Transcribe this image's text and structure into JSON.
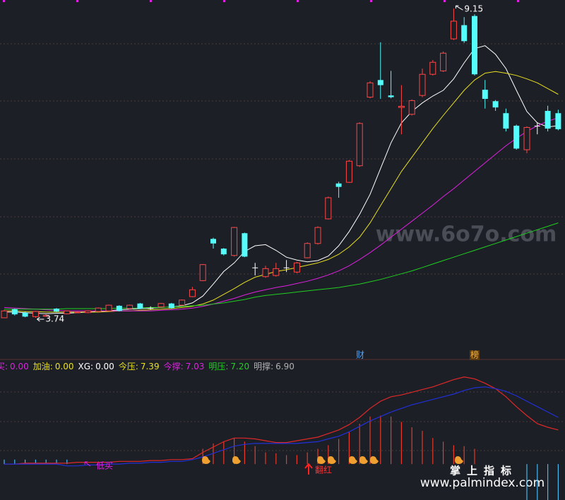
{
  "chart_data": [
    {
      "type": "candlestick",
      "ylim": [
        3.06,
        9.3
      ],
      "up_color": "#ff4646",
      "down_color": "#54fcfc",
      "flat_color": "#ffffff",
      "open": [
        3.74,
        3.89,
        3.83,
        3.76,
        3.77,
        3.9,
        3.81,
        3.83,
        3.83,
        3.85,
        3.86,
        3.95,
        3.9,
        3.99,
        3.91,
        3.93,
        3.99,
        3.96,
        4.11,
        4.39,
        5.12,
        4.95,
        4.83,
        5.22,
        4.62,
        4.46,
        4.48,
        4.62,
        4.54,
        4.79,
        5.04,
        5.47,
        6.09,
        6.11,
        6.4,
        7.6,
        7.9,
        7.63,
        7.42,
        7.3,
        7.63,
        8.0,
        8.06,
        8.62,
        8.86,
        9.02,
        7.73,
        7.53,
        7.32,
        7.1,
        6.68,
        7.1,
        7.36,
        7.32
      ],
      "high": [
        3.88,
        3.9,
        3.85,
        3.86,
        3.8,
        3.91,
        3.87,
        3.85,
        3.87,
        3.92,
        3.97,
        3.96,
        3.97,
        4.0,
        3.94,
        4.0,
        4.0,
        4.06,
        4.28,
        4.68,
        5.14,
        4.96,
        5.33,
        5.23,
        4.7,
        4.65,
        4.7,
        4.75,
        4.72,
        5.06,
        5.34,
        5.86,
        6.12,
        6.5,
        7.16,
        7.88,
        8.56,
        8.06,
        7.81,
        7.56,
        8.1,
        8.25,
        8.4,
        9.15,
        9.0,
        9.05,
        7.9,
        7.55,
        7.4,
        7.12,
        7.09,
        7.16,
        7.45,
        7.38
      ],
      "low": [
        3.75,
        3.78,
        3.75,
        3.74,
        3.76,
        3.84,
        3.8,
        3.82,
        3.82,
        3.84,
        3.85,
        3.85,
        3.89,
        3.89,
        3.88,
        3.92,
        3.9,
        3.95,
        4.1,
        4.38,
        4.95,
        4.83,
        4.81,
        4.8,
        4.48,
        4.44,
        4.46,
        4.54,
        4.52,
        4.78,
        5.02,
        5.46,
        5.84,
        6.1,
        6.38,
        7.58,
        7.57,
        7.58,
        6.95,
        7.28,
        7.6,
        7.98,
        8.04,
        8.6,
        8.55,
        7.98,
        7.4,
        7.36,
        7.0,
        6.68,
        6.62,
        6.95,
        7.0,
        7.02
      ],
      "close": [
        3.86,
        3.8,
        3.76,
        3.85,
        3.78,
        3.85,
        3.86,
        3.84,
        3.86,
        3.91,
        3.96,
        3.86,
        3.96,
        3.9,
        3.91,
        3.99,
        3.91,
        4.05,
        4.23,
        4.67,
        5.04,
        4.85,
        5.32,
        4.81,
        4.62,
        4.6,
        4.6,
        4.62,
        4.7,
        5.04,
        5.32,
        5.84,
        6.03,
        6.48,
        7.14,
        7.85,
        7.81,
        7.6,
        7.44,
        7.54,
        8.0,
        8.21,
        8.37,
        8.93,
        8.58,
        8.0,
        7.57,
        7.42,
        7.05,
        6.7,
        7.07,
        7.1,
        7.05,
        7.04
      ],
      "series": [
        {
          "color": "#ffffff",
          "values": [
            3.84,
            3.84,
            3.83,
            3.82,
            3.81,
            3.82,
            3.82,
            3.83,
            3.84,
            3.85,
            3.86,
            3.88,
            3.89,
            3.9,
            3.91,
            3.92,
            3.93,
            3.95,
            4.0,
            4.12,
            4.33,
            4.55,
            4.7,
            4.9,
            5.0,
            5.02,
            4.92,
            4.8,
            4.75,
            4.72,
            4.74,
            4.82,
            5.0,
            5.25,
            5.55,
            5.9,
            6.35,
            6.8,
            7.15,
            7.35,
            7.5,
            7.62,
            7.72,
            7.92,
            8.2,
            8.45,
            8.5,
            8.35,
            8.1,
            7.72,
            7.35,
            7.15,
            7.08,
            7.1
          ]
        },
        {
          "color": "#e8e020",
          "values": [
            3.86,
            3.86,
            3.85,
            3.85,
            3.84,
            3.84,
            3.84,
            3.84,
            3.84,
            3.84,
            3.85,
            3.86,
            3.86,
            3.87,
            3.88,
            3.89,
            3.9,
            3.92,
            3.94,
            3.98,
            4.05,
            4.15,
            4.25,
            4.36,
            4.45,
            4.5,
            4.55,
            4.58,
            4.62,
            4.66,
            4.7,
            4.76,
            4.85,
            4.98,
            5.15,
            5.4,
            5.7,
            6.0,
            6.3,
            6.55,
            6.8,
            7.05,
            7.28,
            7.5,
            7.72,
            7.9,
            8.02,
            8.05,
            8.02,
            7.98,
            7.92,
            7.85,
            7.75,
            7.65
          ]
        },
        {
          "color": "#e020e0",
          "values": [
            3.92,
            3.91,
            3.9,
            3.89,
            3.88,
            3.87,
            3.86,
            3.86,
            3.86,
            3.86,
            3.86,
            3.86,
            3.86,
            3.86,
            3.86,
            3.87,
            3.88,
            3.89,
            3.91,
            3.94,
            3.98,
            4.03,
            4.08,
            4.14,
            4.19,
            4.23,
            4.27,
            4.3,
            4.34,
            4.38,
            4.43,
            4.49,
            4.56,
            4.65,
            4.76,
            4.88,
            5.01,
            5.15,
            5.29,
            5.43,
            5.57,
            5.71,
            5.86,
            6.0,
            6.15,
            6.3,
            6.45,
            6.6,
            6.75,
            6.88,
            7.0,
            7.1,
            7.18,
            7.24
          ]
        },
        {
          "color": "#20d020",
          "values": [
            3.89,
            3.89,
            3.89,
            3.89,
            3.89,
            3.89,
            3.9,
            3.9,
            3.9,
            3.9,
            3.9,
            3.91,
            3.91,
            3.91,
            3.92,
            3.92,
            3.93,
            3.94,
            3.95,
            3.96,
            3.98,
            4.0,
            4.03,
            4.06,
            4.1,
            4.13,
            4.15,
            4.17,
            4.19,
            4.21,
            4.23,
            4.25,
            4.27,
            4.3,
            4.33,
            4.37,
            4.41,
            4.46,
            4.51,
            4.56,
            4.62,
            4.68,
            4.74,
            4.8,
            4.86,
            4.92,
            4.98,
            5.04,
            5.1,
            5.16,
            5.22,
            5.28,
            5.34,
            5.4
          ]
        }
      ],
      "max_marker": 9.15,
      "min_marker": 3.74,
      "events": [
        "财",
        "榜"
      ]
    },
    {
      "type": "indicator",
      "ylim": [
        -40,
        100
      ],
      "legend": [
        {
          "label": "买:",
          "value": "0.00",
          "color": "#e020e0"
        },
        {
          "label": "加油:",
          "value": "0.00",
          "color": "#e8e020"
        },
        {
          "label": "XG:",
          "value": "0.00",
          "color": "#ffffff"
        },
        {
          "label": "今压:",
          "value": "7.39",
          "color": "#e8e020"
        },
        {
          "label": "今撑:",
          "value": "7.03",
          "color": "#e020e0"
        },
        {
          "label": "明压:",
          "value": "7.20",
          "color": "#20d020"
        },
        {
          "label": "明撑:",
          "value": "6.90",
          "color": "#b0b0b0"
        }
      ],
      "series": [
        {
          "color": "#e02828",
          "values": [
            0,
            0,
            1,
            1,
            1,
            1,
            1,
            2,
            2,
            2,
            2,
            3,
            3,
            3,
            4,
            4,
            5,
            5,
            6,
            13,
            19,
            25,
            29,
            29,
            28,
            26,
            24,
            24,
            26,
            28,
            30,
            34,
            38,
            44,
            52,
            62,
            70,
            75,
            77,
            80,
            83,
            86,
            90,
            94,
            97,
            95,
            90,
            84,
            75,
            64,
            54,
            45,
            41,
            38
          ]
        },
        {
          "color": "#2030d8",
          "values": [
            0,
            0,
            0,
            0,
            0,
            0,
            -2,
            -2,
            -1,
            -1,
            0,
            0,
            1,
            1,
            2,
            2,
            3,
            3,
            5,
            8,
            12,
            16,
            20,
            22,
            23,
            23,
            23,
            23,
            23,
            24,
            25,
            28,
            31,
            36,
            42,
            48,
            53,
            58,
            62,
            66,
            69,
            72,
            75,
            78,
            82,
            85,
            86,
            84,
            81,
            76,
            70,
            64,
            58,
            52
          ]
        }
      ],
      "bars": [
        {
          "color": "#e83a2a",
          "values": [
            null,
            null,
            null,
            null,
            null,
            null,
            null,
            null,
            null,
            null,
            null,
            null,
            null,
            null,
            null,
            null,
            null,
            null,
            null,
            17,
            23,
            25,
            29,
            25,
            20,
            13,
            12,
            10,
            10,
            13,
            17,
            21,
            28,
            36,
            45,
            53,
            54,
            53,
            47,
            41,
            37,
            29,
            25,
            21,
            20,
            17,
            null,
            null,
            null,
            null,
            null,
            null,
            null,
            null
          ]
        },
        {
          "color": "#48b8f0",
          "values": [
            5,
            5,
            5,
            5,
            5,
            5,
            5,
            null,
            null,
            null,
            null,
            null,
            null,
            null,
            null,
            null,
            null,
            null,
            null,
            null,
            null,
            null,
            null,
            null,
            null,
            null,
            null,
            null,
            null,
            null,
            null,
            null,
            null,
            null,
            null,
            null,
            null,
            null,
            null,
            null,
            null,
            null,
            null,
            null,
            null,
            null,
            null,
            null,
            null,
            null,
            -40,
            -40,
            -40,
            -40
          ]
        }
      ],
      "annotations": [
        "低买",
        "翻红"
      ]
    }
  ],
  "watermarks": [
    "www.6o7o.com",
    "掌上指标",
    "www.palmindex.com"
  ]
}
